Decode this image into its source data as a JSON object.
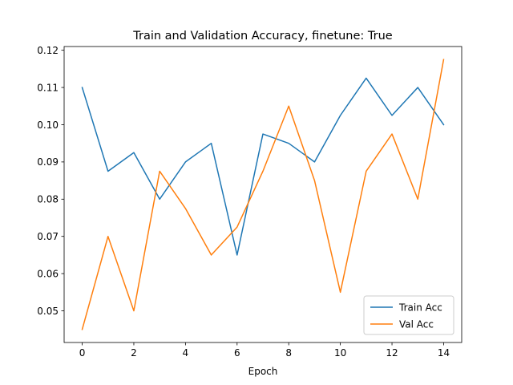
{
  "chart_data": {
    "type": "line",
    "title": "Train and Validation Accuracy, finetune: True",
    "xlabel": "Epoch",
    "ylabel": "",
    "x": [
      0,
      1,
      2,
      3,
      4,
      5,
      6,
      7,
      8,
      9,
      10,
      11,
      12,
      13,
      14
    ],
    "xlim": [
      -0.7,
      14.7
    ],
    "ylim": [
      0.0415,
      0.121
    ],
    "xticks": [
      0,
      2,
      4,
      6,
      8,
      10,
      12,
      14
    ],
    "yticks": [
      0.05,
      0.06,
      0.07,
      0.08,
      0.09,
      0.1,
      0.11,
      0.12
    ],
    "ytick_labels": [
      "0.05",
      "0.06",
      "0.07",
      "0.08",
      "0.09",
      "0.10",
      "0.11",
      "0.12"
    ],
    "grid": false,
    "legend_position": "lower-right",
    "series": [
      {
        "name": "Train Acc",
        "color": "#1f77b4",
        "values": [
          0.11,
          0.0875,
          0.0925,
          0.08,
          0.09,
          0.095,
          0.065,
          0.0975,
          0.095,
          0.09,
          0.1025,
          0.1125,
          0.1025,
          0.11,
          0.1
        ]
      },
      {
        "name": "Val Acc",
        "color": "#ff7f0e",
        "values": [
          0.045,
          0.07,
          0.05,
          0.0875,
          0.0775,
          0.065,
          0.0725,
          0.0875,
          0.105,
          0.085,
          0.055,
          0.0875,
          0.0975,
          0.08,
          0.1175
        ]
      }
    ]
  }
}
